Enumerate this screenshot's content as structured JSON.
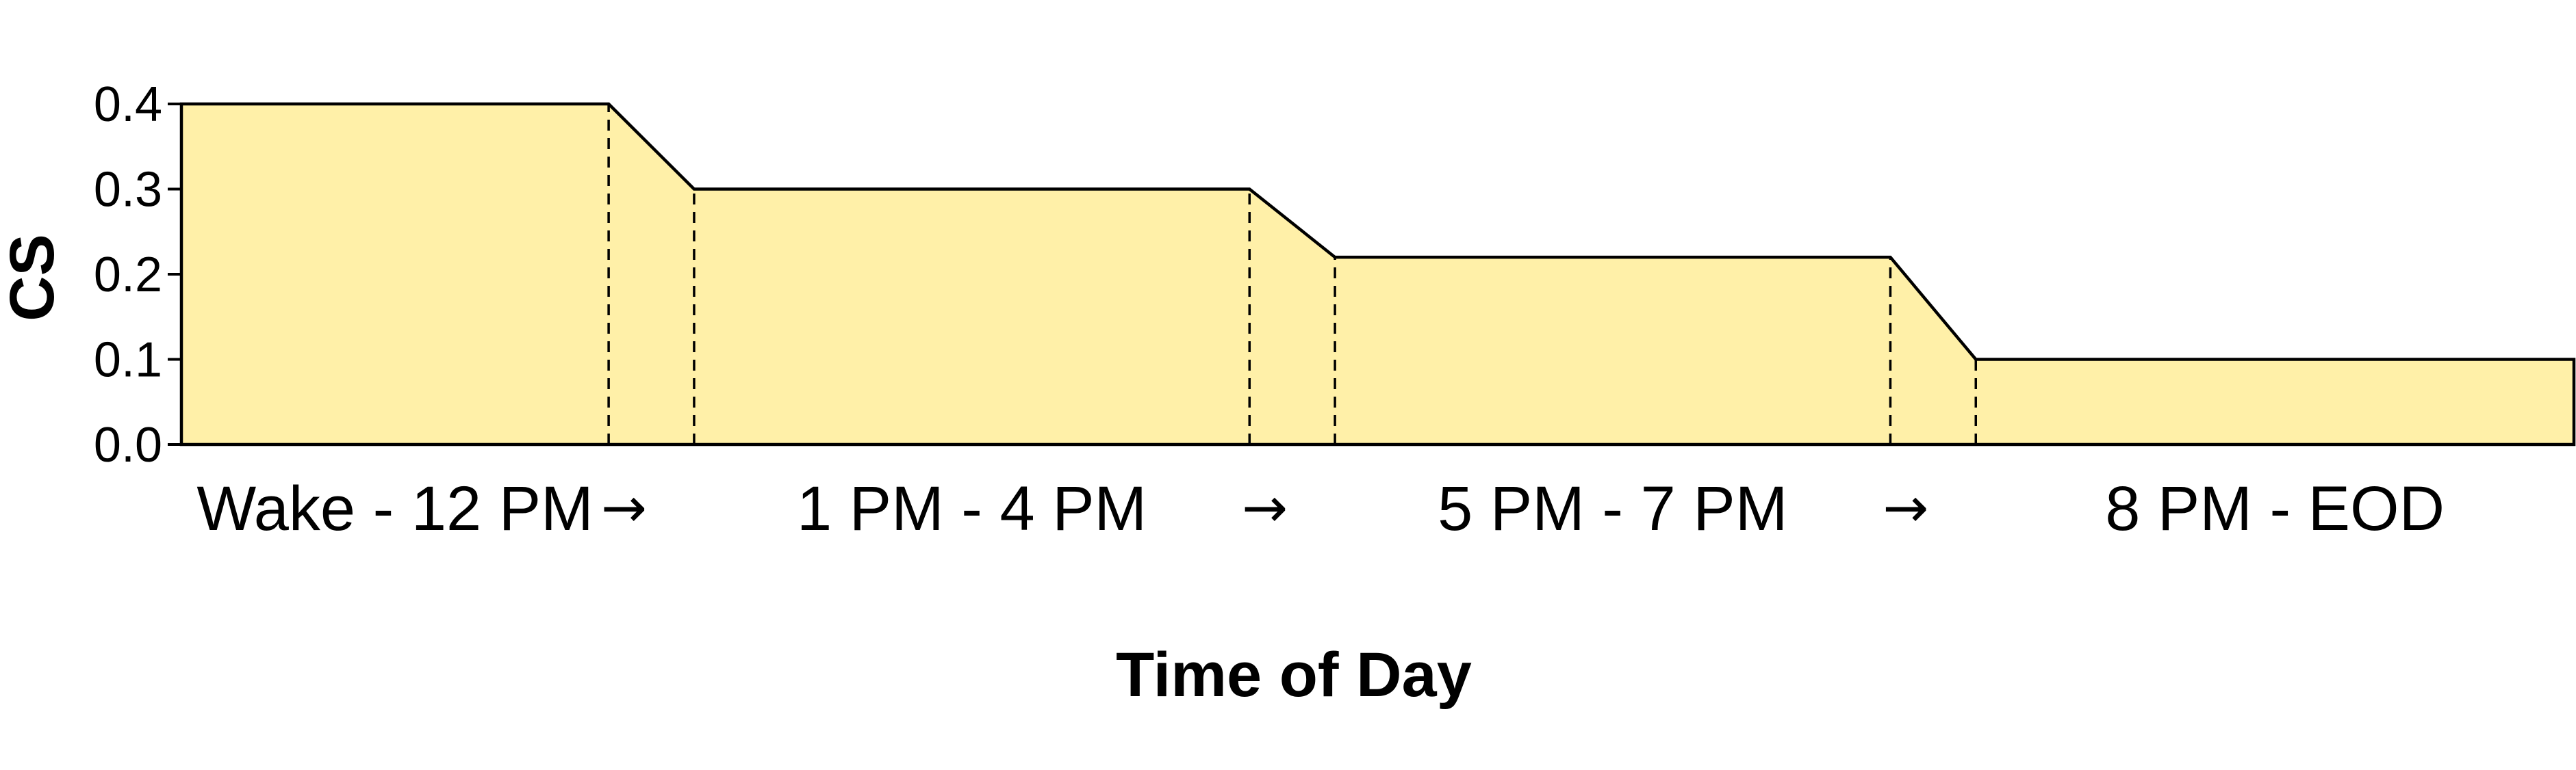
{
  "chart_data": {
    "type": "area",
    "title": "",
    "xlabel": "Time of Day",
    "ylabel": "CS",
    "ylim": [
      0,
      0.4
    ],
    "yticks": [
      "0.0",
      "0.1",
      "0.2",
      "0.3",
      "0.4"
    ],
    "x_range": [
      0,
      28
    ],
    "segments": [
      {
        "label": "Wake - 12 PM",
        "x_start": 0,
        "x_end": 5,
        "value": 0.4
      },
      {
        "label": "1 PM - 4 PM",
        "x_start": 6,
        "x_end": 12.5,
        "value": 0.3
      },
      {
        "label": "5 PM - 7 PM",
        "x_start": 13.5,
        "x_end": 20,
        "value": 0.22
      },
      {
        "label": "8 PM - EOD",
        "x_start": 21,
        "x_end": 28,
        "value": 0.1
      }
    ],
    "transitions": [
      "→",
      "→",
      "→"
    ],
    "series": [
      {
        "x": [
          0,
          5,
          6,
          12.5,
          13.5,
          20,
          21,
          28
        ],
        "values": [
          0.4,
          0.4,
          0.3,
          0.3,
          0.22,
          0.22,
          0.1,
          0.1
        ]
      }
    ],
    "dashed_markers_x": [
      5,
      6,
      12.5,
      13.5,
      20,
      21
    ],
    "grid": false,
    "fill_color": "#fff0a8",
    "line_color": "#000000"
  }
}
